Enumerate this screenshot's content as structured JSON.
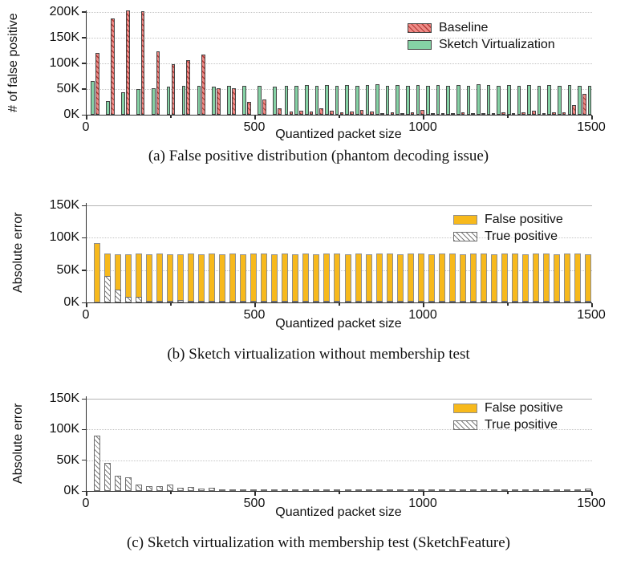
{
  "colors": {
    "baseline_fill": "#ee8a86",
    "baseline_hatch_line": "#b23a36",
    "sketch_virtualization_fill": "#85d2a5",
    "false_positive_fill": "#f7b91c",
    "true_positive_fill": "#ffffff",
    "true_positive_hatch_line": "#7d7d7d",
    "axis": "#2f2f2f",
    "gridline": "#c4c4c4"
  },
  "chart_data": [
    {
      "id": "a",
      "type": "bar",
      "subtype": "grouped",
      "title": "",
      "ylabel": "# of false positive",
      "xlabel": "Quantized packet size",
      "caption": "(a) False positive distribution (phantom decoding issue)",
      "ylim": [
        0,
        203
      ],
      "xlim": [
        0,
        1500
      ],
      "grid": "horizontal-dotted",
      "legend_position": "top-right-inside",
      "yticks": [
        {
          "v": 0,
          "label": "0K"
        },
        {
          "v": 50,
          "label": "50K"
        },
        {
          "v": 100,
          "label": "100K"
        },
        {
          "v": 150,
          "label": "150K"
        },
        {
          "v": 200,
          "label": "200K"
        }
      ],
      "xticks": [
        {
          "v": 0,
          "label": "0"
        },
        {
          "v": 500,
          "label": "500"
        },
        {
          "v": 1000,
          "label": "1000"
        },
        {
          "v": 1500,
          "label": "1500"
        }
      ],
      "xminor": [
        250,
        750,
        1250
      ],
      "legend": [
        {
          "label": "Baseline",
          "style": "red-hatch"
        },
        {
          "label": "Sketch Virtualization",
          "style": "green-solid"
        }
      ],
      "x": [
        25,
        70,
        115,
        160,
        205,
        250,
        295,
        340,
        385,
        430,
        475,
        520,
        565,
        600,
        630,
        660,
        690,
        720,
        750,
        780,
        810,
        840,
        870,
        900,
        930,
        960,
        990,
        1020,
        1050,
        1080,
        1110,
        1140,
        1170,
        1200,
        1230,
        1260,
        1290,
        1320,
        1350,
        1380,
        1410,
        1440,
        1470,
        1500
      ],
      "series": [
        {
          "name": "Baseline",
          "style": "red-hatch",
          "unit": "K",
          "values": [
            120,
            188,
            205,
            202,
            123,
            98,
            106,
            117,
            51,
            52,
            25,
            30,
            12,
            6,
            8,
            6,
            13,
            8,
            5,
            6,
            9,
            6,
            3,
            5,
            2,
            5,
            10,
            2,
            3,
            2,
            4,
            2,
            3,
            2,
            4,
            2,
            5,
            8,
            3,
            5,
            5,
            18,
            40,
            0
          ]
        },
        {
          "name": "Sketch Virtualization",
          "style": "green-solid",
          "unit": "K",
          "values": [
            65,
            27,
            43,
            50,
            51,
            55,
            57,
            57,
            55,
            56,
            57,
            57,
            55,
            57,
            57,
            58,
            57,
            58,
            57,
            58,
            57,
            58,
            60,
            57,
            58,
            57,
            58,
            57,
            58,
            57,
            58,
            57,
            60,
            58,
            57,
            58,
            57,
            58,
            57,
            58,
            57,
            58,
            57,
            57
          ]
        }
      ]
    },
    {
      "id": "b",
      "type": "bar",
      "subtype": "overlay",
      "title": "",
      "ylabel": "Absolute error",
      "xlabel": "Quantized packet size",
      "caption": "(b) Sketch virtualization without membership test",
      "ylim": [
        0,
        154
      ],
      "xlim": [
        0,
        1500
      ],
      "grid": "horizontal-dotted",
      "legend_position": "top-right-inside",
      "yticks": [
        {
          "v": 0,
          "label": "0K"
        },
        {
          "v": 50,
          "label": "50K"
        },
        {
          "v": 100,
          "label": "100K"
        },
        {
          "v": 150,
          "label": "150K"
        }
      ],
      "xticks": [
        {
          "v": 0,
          "label": "0"
        },
        {
          "v": 500,
          "label": "500"
        },
        {
          "v": 1000,
          "label": "1000"
        },
        {
          "v": 1500,
          "label": "1500"
        }
      ],
      "xminor": [
        250,
        750,
        1250
      ],
      "legend": [
        {
          "label": "False positive",
          "style": "yellow-solid"
        },
        {
          "label": "True positive",
          "style": "white-hatch"
        }
      ],
      "x": [
        31,
        62,
        93,
        124,
        155,
        186,
        217,
        248,
        279,
        310,
        341,
        372,
        403,
        434,
        465,
        496,
        527,
        558,
        589,
        620,
        651,
        682,
        713,
        744,
        775,
        806,
        837,
        868,
        899,
        930,
        961,
        992,
        1023,
        1054,
        1085,
        1116,
        1147,
        1178,
        1209,
        1240,
        1271,
        1302,
        1333,
        1364,
        1395,
        1426,
        1457,
        1488
      ],
      "series": [
        {
          "name": "False positive",
          "style": "yellow-solid",
          "unit": "K",
          "values": [
            92,
            76,
            75,
            75,
            76,
            75,
            76,
            75,
            75,
            76,
            75,
            76,
            75,
            76,
            75,
            76,
            76,
            75,
            76,
            75,
            76,
            75,
            76,
            76,
            75,
            76,
            75,
            76,
            76,
            75,
            76,
            76,
            75,
            76,
            76,
            75,
            76,
            76,
            75,
            76,
            76,
            75,
            76,
            76,
            75,
            76,
            76,
            74
          ]
        },
        {
          "name": "True positive",
          "style": "white-hatch",
          "unit": "K",
          "values": [
            0,
            41,
            20,
            9,
            9,
            3,
            2,
            2,
            4,
            2,
            2,
            1.5,
            1.5,
            1.5,
            1,
            1,
            1,
            1,
            1,
            1,
            1,
            1,
            1,
            1,
            1,
            1,
            1,
            1,
            1,
            1,
            1,
            1,
            1,
            1,
            1,
            1,
            1,
            1,
            1,
            1,
            1,
            1,
            1,
            1,
            1,
            1,
            1,
            1
          ]
        }
      ]
    },
    {
      "id": "c",
      "type": "bar",
      "subtype": "overlay",
      "title": "",
      "ylabel": "Absolute error",
      "xlabel": "Quantized packet size",
      "caption": "(c) Sketch virtualization with membership test (SketchFeature)",
      "ylim": [
        0,
        154
      ],
      "xlim": [
        0,
        1500
      ],
      "grid": "horizontal-dotted",
      "legend_position": "top-right-inside",
      "yticks": [
        {
          "v": 0,
          "label": "0K"
        },
        {
          "v": 50,
          "label": "50K"
        },
        {
          "v": 100,
          "label": "100K"
        },
        {
          "v": 150,
          "label": "150K"
        }
      ],
      "xticks": [
        {
          "v": 0,
          "label": "0"
        },
        {
          "v": 500,
          "label": "500"
        },
        {
          "v": 1000,
          "label": "1000"
        },
        {
          "v": 1500,
          "label": "1500"
        }
      ],
      "xminor": [
        250,
        750,
        1250
      ],
      "legend": [
        {
          "label": "False positive",
          "style": "yellow-solid"
        },
        {
          "label": "True positive",
          "style": "white-hatch"
        }
      ],
      "x": [
        31,
        62,
        93,
        124,
        155,
        186,
        217,
        248,
        279,
        310,
        341,
        372,
        403,
        434,
        465,
        496,
        527,
        558,
        589,
        620,
        651,
        682,
        713,
        744,
        775,
        806,
        837,
        868,
        899,
        930,
        961,
        992,
        1023,
        1054,
        1085,
        1116,
        1147,
        1178,
        1209,
        1240,
        1271,
        1302,
        1333,
        1364,
        1395,
        1426,
        1457,
        1488
      ],
      "series": [
        {
          "name": "False positive",
          "style": "yellow-solid",
          "unit": "K",
          "values": [
            0,
            0,
            0,
            0,
            0,
            0,
            0,
            0,
            0,
            0,
            0,
            0,
            0,
            0,
            0,
            0,
            0,
            0,
            0,
            0,
            0,
            0,
            0,
            0,
            0,
            0,
            0,
            0,
            0,
            0,
            0,
            0,
            0,
            0,
            0,
            0,
            0,
            0,
            0,
            0,
            0,
            0,
            0,
            0,
            0,
            0,
            0,
            0
          ]
        },
        {
          "name": "True positive",
          "style": "white-hatch",
          "unit": "K",
          "values": [
            90,
            46,
            25,
            22,
            11,
            8,
            8,
            10,
            5,
            6,
            4,
            5,
            3,
            3,
            2.5,
            2.5,
            2,
            2,
            2,
            2,
            2,
            1.5,
            1.5,
            2,
            1.5,
            1.5,
            2,
            1.5,
            1.5,
            1.5,
            2,
            1.5,
            1.5,
            2,
            1.5,
            1.5,
            2,
            1.5,
            2,
            1.5,
            1.5,
            2,
            2.5,
            1.5,
            1.5,
            2,
            3,
            3.5
          ]
        }
      ]
    }
  ]
}
